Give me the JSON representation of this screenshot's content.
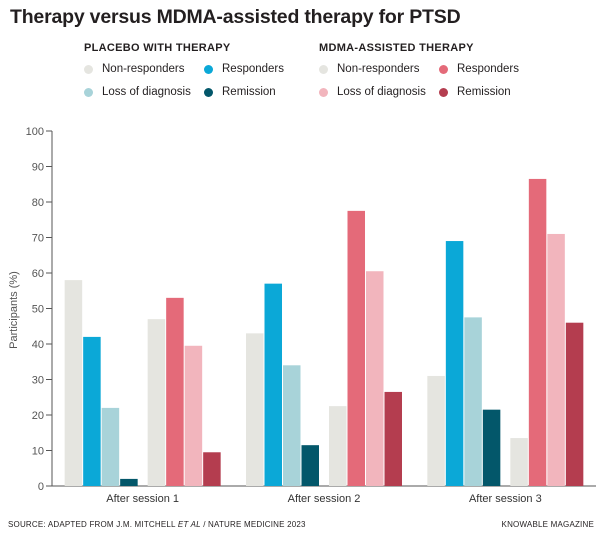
{
  "chart_data": {
    "type": "bar",
    "title": "Therapy versus MDMA-assisted therapy for PTSD",
    "ylabel": "Participants (%)",
    "xlabel": "",
    "ylim": [
      0,
      100
    ],
    "yticks": [
      0,
      10,
      20,
      30,
      40,
      50,
      60,
      70,
      80,
      90,
      100
    ],
    "grid": false,
    "legend_placement": "top",
    "categories": [
      "After session 1",
      "After session 2",
      "After session 3"
    ],
    "groups": [
      {
        "name": "PLACEBO WITH THERAPY",
        "series": [
          {
            "name": "Non-responders",
            "color": "#e5e5e0",
            "values": [
              58,
              43,
              31
            ]
          },
          {
            "name": "Responders",
            "color": "#0ba8d7",
            "values": [
              42,
              57,
              69
            ]
          },
          {
            "name": "Loss of diagnosis",
            "color": "#a8d3d9",
            "values": [
              22,
              34,
              47.5
            ]
          },
          {
            "name": "Remission",
            "color": "#03576a",
            "values": [
              2,
              11.5,
              21.5
            ]
          }
        ]
      },
      {
        "name": "MDMA-ASSISTED THERAPY",
        "series": [
          {
            "name": "Non-responders",
            "color": "#e5e5e0",
            "values": [
              47,
              22.5,
              13.5
            ]
          },
          {
            "name": "Responders",
            "color": "#e46a79",
            "values": [
              53,
              77.5,
              86.5
            ]
          },
          {
            "name": "Loss of diagnosis",
            "color": "#f2b5bd",
            "values": [
              39.5,
              60.5,
              71
            ]
          },
          {
            "name": "Remission",
            "color": "#b43d4f",
            "values": [
              9.5,
              26.5,
              46
            ]
          }
        ]
      }
    ]
  },
  "footer": {
    "source_prefix": "SOURCE: ADAPTED FROM J.M. MITCHELL ",
    "source_italic": "ET AL",
    "source_suffix": " / NATURE MEDICINE 2023",
    "credit": "KNOWABLE MAGAZINE"
  }
}
